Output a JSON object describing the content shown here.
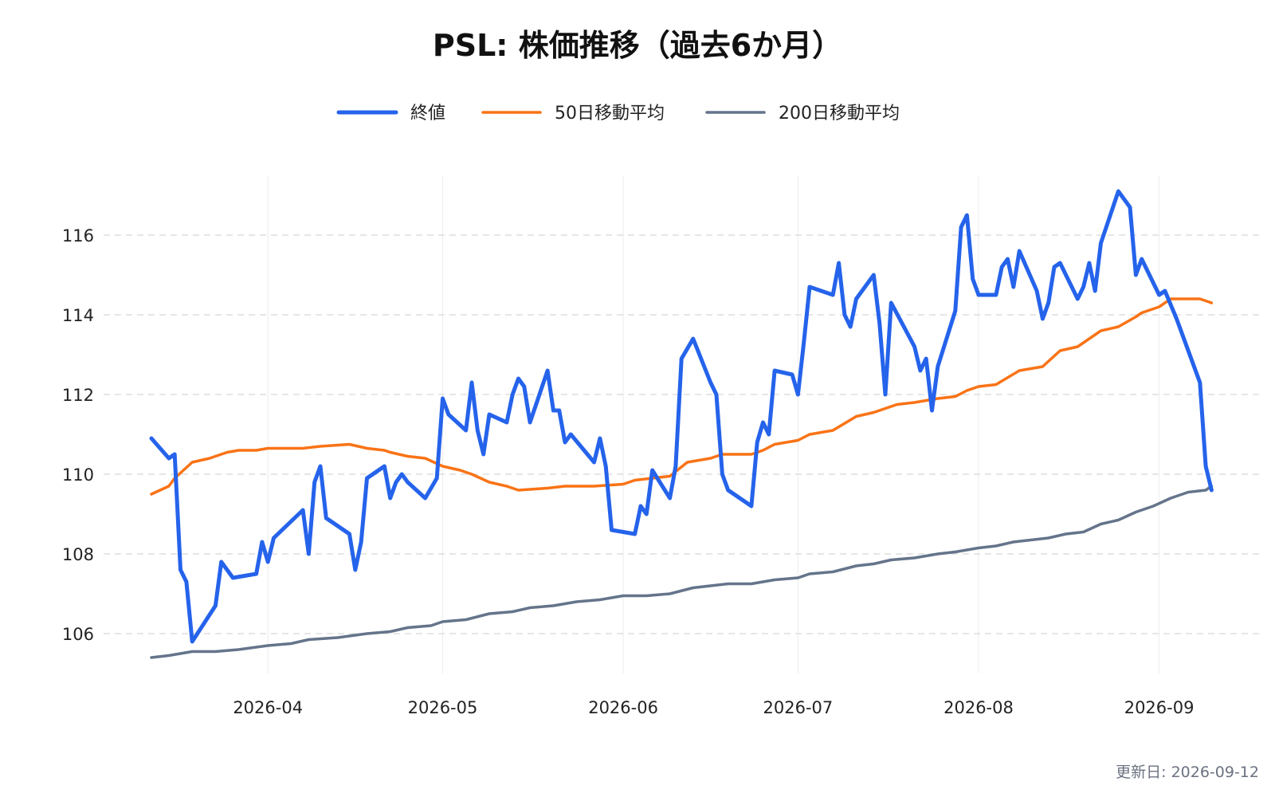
{
  "chart_data": {
    "type": "line",
    "title": "PSL: 株価推移（過去6か月）",
    "xlabel": "",
    "ylabel": "",
    "x_range": [
      "2026-03-12",
      "2026-09-12"
    ],
    "ylim": [
      105,
      117.5
    ],
    "grid": "horizontal dashed",
    "legend_position": "top-center",
    "y_ticks": [
      106,
      108,
      110,
      112,
      114,
      116
    ],
    "x_ticks": [
      "2026-04",
      "2026-05",
      "2026-06",
      "2026-07",
      "2026-08",
      "2026-09"
    ],
    "footer": "更新日: 2026-09-12",
    "series": [
      {
        "name": "終値",
        "color": "#2563eb",
        "points": [
          [
            "2026-03-12",
            110.9
          ],
          [
            "2026-03-15",
            110.4
          ],
          [
            "2026-03-16",
            110.5
          ],
          [
            "2026-03-17",
            107.6
          ],
          [
            "2026-03-18",
            107.3
          ],
          [
            "2026-03-19",
            105.8
          ],
          [
            "2026-03-23",
            106.7
          ],
          [
            "2026-03-24",
            107.8
          ],
          [
            "2026-03-25",
            107.6
          ],
          [
            "2026-03-26",
            107.4
          ],
          [
            "2026-03-30",
            107.5
          ],
          [
            "2026-03-31",
            108.3
          ],
          [
            "2026-04-01",
            107.8
          ],
          [
            "2026-04-02",
            108.4
          ],
          [
            "2026-04-07",
            109.1
          ],
          [
            "2026-04-08",
            108.0
          ],
          [
            "2026-04-09",
            109.8
          ],
          [
            "2026-04-10",
            110.2
          ],
          [
            "2026-04-11",
            108.9
          ],
          [
            "2026-04-15",
            108.5
          ],
          [
            "2026-04-16",
            107.6
          ],
          [
            "2026-04-17",
            108.3
          ],
          [
            "2026-04-18",
            109.9
          ],
          [
            "2026-04-21",
            110.2
          ],
          [
            "2026-04-22",
            109.4
          ],
          [
            "2026-04-23",
            109.8
          ],
          [
            "2026-04-24",
            110.0
          ],
          [
            "2026-04-25",
            109.8
          ],
          [
            "2026-04-28",
            109.4
          ],
          [
            "2026-04-30",
            109.9
          ],
          [
            "2026-05-01",
            111.9
          ],
          [
            "2026-05-02",
            111.5
          ],
          [
            "2026-05-05",
            111.1
          ],
          [
            "2026-05-06",
            112.3
          ],
          [
            "2026-05-07",
            111.1
          ],
          [
            "2026-05-08",
            110.5
          ],
          [
            "2026-05-09",
            111.5
          ],
          [
            "2026-05-12",
            111.3
          ],
          [
            "2026-05-13",
            112.0
          ],
          [
            "2026-05-14",
            112.4
          ],
          [
            "2026-05-15",
            112.2
          ],
          [
            "2026-05-16",
            111.3
          ],
          [
            "2026-05-19",
            112.6
          ],
          [
            "2026-05-20",
            111.6
          ],
          [
            "2026-05-21",
            111.6
          ],
          [
            "2026-05-22",
            110.8
          ],
          [
            "2026-05-23",
            111.0
          ],
          [
            "2026-05-27",
            110.3
          ],
          [
            "2026-05-28",
            110.9
          ],
          [
            "2026-05-29",
            110.2
          ],
          [
            "2026-05-30",
            108.6
          ],
          [
            "2026-06-03",
            108.5
          ],
          [
            "2026-06-04",
            109.2
          ],
          [
            "2026-06-05",
            109.0
          ],
          [
            "2026-06-06",
            110.1
          ],
          [
            "2026-06-09",
            109.4
          ],
          [
            "2026-06-10",
            110.2
          ],
          [
            "2026-06-11",
            112.9
          ],
          [
            "2026-06-13",
            113.4
          ],
          [
            "2026-06-16",
            112.3
          ],
          [
            "2026-06-17",
            112.0
          ],
          [
            "2026-06-18",
            110.0
          ],
          [
            "2026-06-19",
            109.6
          ],
          [
            "2026-06-23",
            109.2
          ],
          [
            "2026-06-24",
            110.8
          ],
          [
            "2026-06-25",
            111.3
          ],
          [
            "2026-06-26",
            111.0
          ],
          [
            "2026-06-27",
            112.6
          ],
          [
            "2026-06-30",
            112.5
          ],
          [
            "2026-07-01",
            112.0
          ],
          [
            "2026-07-02",
            113.3
          ],
          [
            "2026-07-03",
            114.7
          ],
          [
            "2026-07-07",
            114.5
          ],
          [
            "2026-07-08",
            115.3
          ],
          [
            "2026-07-09",
            114.0
          ],
          [
            "2026-07-10",
            113.7
          ],
          [
            "2026-07-11",
            114.4
          ],
          [
            "2026-07-14",
            115.0
          ],
          [
            "2026-07-15",
            113.8
          ],
          [
            "2026-07-16",
            112.0
          ],
          [
            "2026-07-17",
            114.3
          ],
          [
            "2026-07-21",
            113.2
          ],
          [
            "2026-07-22",
            112.6
          ],
          [
            "2026-07-23",
            112.9
          ],
          [
            "2026-07-24",
            111.6
          ],
          [
            "2026-07-25",
            112.7
          ],
          [
            "2026-07-28",
            114.1
          ],
          [
            "2026-07-29",
            116.2
          ],
          [
            "2026-07-30",
            116.5
          ],
          [
            "2026-07-31",
            114.9
          ],
          [
            "2026-08-01",
            114.5
          ],
          [
            "2026-08-04",
            114.5
          ],
          [
            "2026-08-05",
            115.2
          ],
          [
            "2026-08-06",
            115.4
          ],
          [
            "2026-08-07",
            114.7
          ],
          [
            "2026-08-08",
            115.6
          ],
          [
            "2026-08-11",
            114.6
          ],
          [
            "2026-08-12",
            113.9
          ],
          [
            "2026-08-13",
            114.3
          ],
          [
            "2026-08-14",
            115.2
          ],
          [
            "2026-08-15",
            115.3
          ],
          [
            "2026-08-18",
            114.4
          ],
          [
            "2026-08-19",
            114.7
          ],
          [
            "2026-08-20",
            115.3
          ],
          [
            "2026-08-21",
            114.6
          ],
          [
            "2026-08-22",
            115.8
          ],
          [
            "2026-08-25",
            117.1
          ],
          [
            "2026-08-27",
            116.7
          ],
          [
            "2026-08-28",
            115.0
          ],
          [
            "2026-08-29",
            115.4
          ],
          [
            "2026-09-01",
            114.5
          ],
          [
            "2026-09-02",
            114.6
          ],
          [
            "2026-09-04",
            113.9
          ],
          [
            "2026-09-08",
            112.3
          ],
          [
            "2026-09-09",
            110.2
          ],
          [
            "2026-09-10",
            109.6
          ]
        ]
      },
      {
        "name": "50日移動平均",
        "color": "#f97316",
        "points": [
          [
            "2026-03-12",
            109.5
          ],
          [
            "2026-03-15",
            109.7
          ],
          [
            "2026-03-16",
            109.9
          ],
          [
            "2026-03-19",
            110.3
          ],
          [
            "2026-03-22",
            110.4
          ],
          [
            "2026-03-25",
            110.55
          ],
          [
            "2026-03-27",
            110.6
          ],
          [
            "2026-03-30",
            110.6
          ],
          [
            "2026-04-01",
            110.65
          ],
          [
            "2026-04-07",
            110.65
          ],
          [
            "2026-04-10",
            110.7
          ],
          [
            "2026-04-15",
            110.75
          ],
          [
            "2026-04-18",
            110.65
          ],
          [
            "2026-04-21",
            110.6
          ],
          [
            "2026-04-22",
            110.55
          ],
          [
            "2026-04-25",
            110.45
          ],
          [
            "2026-04-28",
            110.4
          ],
          [
            "2026-05-01",
            110.2
          ],
          [
            "2026-05-04",
            110.1
          ],
          [
            "2026-05-06",
            110.0
          ],
          [
            "2026-05-09",
            109.8
          ],
          [
            "2026-05-12",
            109.7
          ],
          [
            "2026-05-14",
            109.6
          ],
          [
            "2026-05-19",
            109.65
          ],
          [
            "2026-05-22",
            109.7
          ],
          [
            "2026-05-27",
            109.7
          ],
          [
            "2026-06-01",
            109.75
          ],
          [
            "2026-06-03",
            109.85
          ],
          [
            "2026-06-06",
            109.9
          ],
          [
            "2026-06-09",
            109.95
          ],
          [
            "2026-06-12",
            110.3
          ],
          [
            "2026-06-16",
            110.4
          ],
          [
            "2026-06-18",
            110.5
          ],
          [
            "2026-06-23",
            110.5
          ],
          [
            "2026-06-25",
            110.6
          ],
          [
            "2026-06-27",
            110.75
          ],
          [
            "2026-07-01",
            110.85
          ],
          [
            "2026-07-03",
            111.0
          ],
          [
            "2026-07-07",
            111.1
          ],
          [
            "2026-07-11",
            111.45
          ],
          [
            "2026-07-14",
            111.55
          ],
          [
            "2026-07-16",
            111.65
          ],
          [
            "2026-07-18",
            111.75
          ],
          [
            "2026-07-21",
            111.8
          ],
          [
            "2026-07-23",
            111.85
          ],
          [
            "2026-07-25",
            111.9
          ],
          [
            "2026-07-28",
            111.95
          ],
          [
            "2026-07-30",
            112.1
          ],
          [
            "2026-08-01",
            112.2
          ],
          [
            "2026-08-04",
            112.25
          ],
          [
            "2026-08-08",
            112.6
          ],
          [
            "2026-08-12",
            112.7
          ],
          [
            "2026-08-15",
            113.1
          ],
          [
            "2026-08-18",
            113.2
          ],
          [
            "2026-08-21",
            113.5
          ],
          [
            "2026-08-22",
            113.6
          ],
          [
            "2026-08-25",
            113.7
          ],
          [
            "2026-08-28",
            113.95
          ],
          [
            "2026-08-29",
            114.05
          ],
          [
            "2026-09-01",
            114.2
          ],
          [
            "2026-09-03",
            114.4
          ],
          [
            "2026-09-05",
            114.4
          ],
          [
            "2026-09-08",
            114.4
          ],
          [
            "2026-09-10",
            114.3
          ]
        ]
      },
      {
        "name": "200日移動平均",
        "color": "#64748b",
        "points": [
          [
            "2026-03-12",
            105.4
          ],
          [
            "2026-03-15",
            105.45
          ],
          [
            "2026-03-19",
            105.55
          ],
          [
            "2026-03-23",
            105.55
          ],
          [
            "2026-03-27",
            105.6
          ],
          [
            "2026-04-01",
            105.7
          ],
          [
            "2026-04-05",
            105.75
          ],
          [
            "2026-04-08",
            105.85
          ],
          [
            "2026-04-13",
            105.9
          ],
          [
            "2026-04-18",
            106.0
          ],
          [
            "2026-04-22",
            106.05
          ],
          [
            "2026-04-25",
            106.15
          ],
          [
            "2026-04-29",
            106.2
          ],
          [
            "2026-05-01",
            106.3
          ],
          [
            "2026-05-05",
            106.35
          ],
          [
            "2026-05-09",
            106.5
          ],
          [
            "2026-05-13",
            106.55
          ],
          [
            "2026-05-16",
            106.65
          ],
          [
            "2026-05-20",
            106.7
          ],
          [
            "2026-05-24",
            106.8
          ],
          [
            "2026-05-28",
            106.85
          ],
          [
            "2026-06-01",
            106.95
          ],
          [
            "2026-06-05",
            106.95
          ],
          [
            "2026-06-09",
            107.0
          ],
          [
            "2026-06-13",
            107.15
          ],
          [
            "2026-06-16",
            107.2
          ],
          [
            "2026-06-19",
            107.25
          ],
          [
            "2026-06-23",
            107.25
          ],
          [
            "2026-06-27",
            107.35
          ],
          [
            "2026-07-01",
            107.4
          ],
          [
            "2026-07-03",
            107.5
          ],
          [
            "2026-07-07",
            107.55
          ],
          [
            "2026-07-11",
            107.7
          ],
          [
            "2026-07-14",
            107.75
          ],
          [
            "2026-07-17",
            107.85
          ],
          [
            "2026-07-21",
            107.9
          ],
          [
            "2026-07-25",
            108.0
          ],
          [
            "2026-07-28",
            108.05
          ],
          [
            "2026-08-01",
            108.15
          ],
          [
            "2026-08-04",
            108.2
          ],
          [
            "2026-08-07",
            108.3
          ],
          [
            "2026-08-10",
            108.35
          ],
          [
            "2026-08-13",
            108.4
          ],
          [
            "2026-08-16",
            108.5
          ],
          [
            "2026-08-19",
            108.55
          ],
          [
            "2026-08-22",
            108.75
          ],
          [
            "2026-08-25",
            108.85
          ],
          [
            "2026-08-28",
            109.05
          ],
          [
            "2026-08-31",
            109.2
          ],
          [
            "2026-09-03",
            109.4
          ],
          [
            "2026-09-06",
            109.55
          ],
          [
            "2026-09-09",
            109.6
          ],
          [
            "2026-09-10",
            109.7
          ]
        ]
      }
    ]
  }
}
